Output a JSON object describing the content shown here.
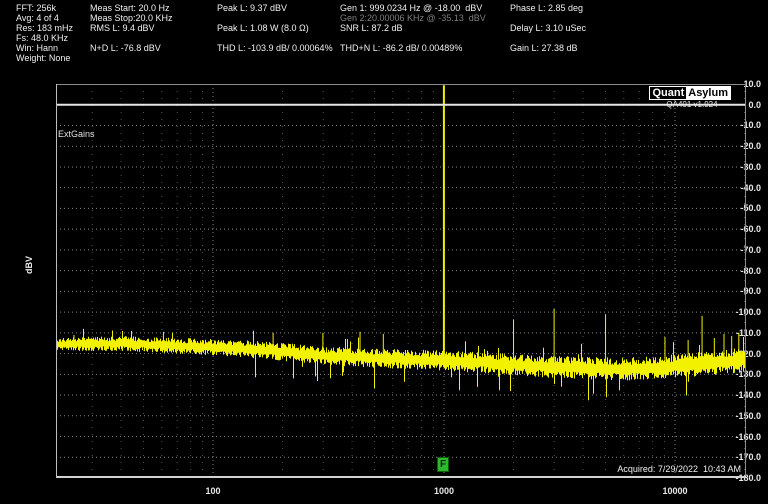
{
  "app": {
    "name": "QuantAsylum QA401"
  },
  "header": {
    "fft": "FFT: 256k",
    "avg": "Avg: 4 of 4",
    "res": "Res: 183 mHz",
    "fs": "Fs: 48.0 KHz",
    "win": "Win: Hann",
    "weight": "Weight: None",
    "meas_start": "Meas Start: 20.0 Hz",
    "meas_stop": "Meas Stop:20.0 KHz",
    "rms": "RMS L: 9.4 dBV",
    "nd": "N+D L: -76.8 dBV",
    "peak_dbv": "Peak L: 9.37 dBV",
    "peak_w": "Peak L: 1.08 W (8.0 Ω)",
    "thd": "THD L: -103.9 dB/ 0.00064%",
    "gen1": "Gen 1: 999.0234 Hz @ -18.00  dBV",
    "gen2": "Gen 2:20.00006 KHz @ -35.13  dBV",
    "snr": "SNR L: 87.2 dB",
    "thdn": "THD+N L: -86.2 dB/ 0.00489%",
    "phase": "Phase L: 2.85 deg",
    "delay": "Delay L: 3.10 uSec",
    "gain": "Gain L: 27.38 dB"
  },
  "plot": {
    "brand_quant": "Quant",
    "brand_asylum": "Asylum",
    "version": "QA401 v1.924",
    "overlay_label": "ExtGains",
    "acquired": "Acquired: 7/29/2022  10:43 AM",
    "marker_label": "F",
    "marker_color": "#2eb82e",
    "trace_color": "#f2f200",
    "grid_color": "#a8a8a8",
    "zero_line_color": "#e6e6e6"
  },
  "chart_data": {
    "type": "line",
    "title": "",
    "xlabel": "",
    "ylabel": "dBV",
    "x_scale": "log",
    "xlim": [
      20.9,
      20300
    ],
    "ylim": [
      -180,
      10
    ],
    "grid": "dotted",
    "legend": null,
    "y_tick_labels": [
      "10.0",
      "0.0",
      "-10.0",
      "-20.0",
      "-30.0",
      "-40.0",
      "-50.0",
      "-60.0",
      "-70.0",
      "-80.0",
      "-90.0",
      "-100.0",
      "-110.0",
      "-120.0",
      "-130.0",
      "-140.0",
      "-150.0",
      "-160.0",
      "-170.0",
      "-180.0"
    ],
    "x_ticks": [
      {
        "f": 100,
        "label": "100"
      },
      {
        "f": 1000,
        "label": "1000"
      },
      {
        "f": 10000,
        "label": "10000"
      }
    ],
    "zero_line_dbv": 0.0,
    "main_tone": {
      "freq_hz": 999.0234,
      "peak_dbv": 9.37
    },
    "noise_floor_trend": [
      [
        20,
        -115.5
      ],
      [
        40,
        -115.2
      ],
      [
        80,
        -116.5
      ],
      [
        150,
        -118.0
      ],
      [
        300,
        -121.0
      ],
      [
        600,
        -122.5
      ],
      [
        1000,
        -123.5
      ],
      [
        1500,
        -124.5
      ],
      [
        2500,
        -126.0
      ],
      [
        4000,
        -127.0
      ],
      [
        6000,
        -127.5
      ],
      [
        9000,
        -126.5
      ],
      [
        13000,
        -125.0
      ],
      [
        17000,
        -123.8
      ],
      [
        20300,
        -123.0
      ]
    ],
    "band_halfwidth_db": [
      3.2,
      6.0
    ],
    "spurs": [
      [
        999.0234,
        9.37
      ],
      [
        2000,
        -103.5
      ],
      [
        2997,
        -98.5
      ],
      [
        5005,
        -101.0
      ],
      [
        9050,
        -112.0
      ],
      [
        11400,
        -113.5
      ],
      [
        13100,
        -101.8
      ],
      [
        25,
        -111.0
      ],
      [
        61,
        -109.5
      ],
      [
        182,
        -110.0
      ],
      [
        299,
        -110.0
      ],
      [
        433,
        -109.5
      ],
      [
        546,
        -110.5
      ],
      [
        14800,
        -112.5
      ],
      [
        16300,
        -110.5
      ],
      [
        17600,
        -111.5
      ],
      [
        18900,
        -110.0
      ],
      [
        19800,
        -112.0
      ]
    ]
  }
}
